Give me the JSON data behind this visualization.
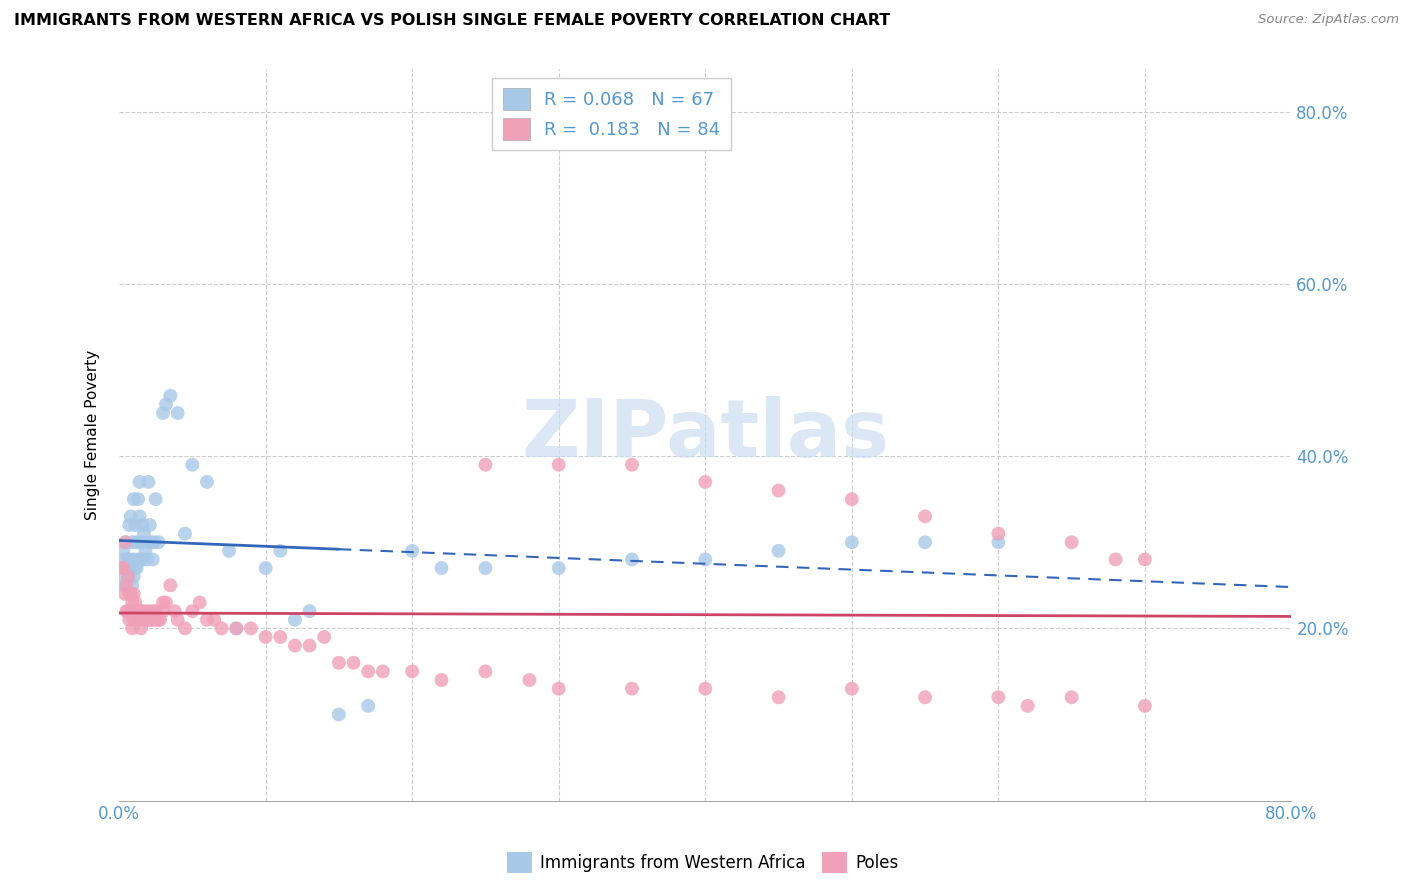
{
  "title": "IMMIGRANTS FROM WESTERN AFRICA VS POLISH SINGLE FEMALE POVERTY CORRELATION CHART",
  "source": "Source: ZipAtlas.com",
  "ylabel": "Single Female Poverty",
  "legend_label1": "Immigrants from Western Africa",
  "legend_label2": "Poles",
  "r1": 0.068,
  "n1": 67,
  "r2": 0.183,
  "n2": 84,
  "blue_color": "#a8c8e8",
  "pink_color": "#f0a0b8",
  "blue_line_color": "#3366bb",
  "pink_line_color": "#cc4466",
  "watermark_color": "#ccddf0",
  "blue_x": [
    0.2,
    0.3,
    0.3,
    0.4,
    0.4,
    0.5,
    0.5,
    0.5,
    0.6,
    0.6,
    0.7,
    0.7,
    0.8,
    0.8,
    0.9,
    0.9,
    1.0,
    1.0,
    1.0,
    1.1,
    1.1,
    1.2,
    1.2,
    1.3,
    1.3,
    1.4,
    1.4,
    1.5,
    1.5,
    1.6,
    1.6,
    1.7,
    1.8,
    1.9,
    2.0,
    2.0,
    2.1,
    2.2,
    2.3,
    2.4,
    2.5,
    2.7,
    3.0,
    3.2,
    3.5,
    4.0,
    4.5,
    5.0,
    6.0,
    7.5,
    8.0,
    10.0,
    11.0,
    12.0,
    13.0,
    15.0,
    17.0,
    20.0,
    22.0,
    25.0,
    30.0,
    35.0,
    40.0,
    45.0,
    50.0,
    55.0,
    60.0
  ],
  "blue_y": [
    27.0,
    25.0,
    29.0,
    26.0,
    28.0,
    30.0,
    25.0,
    27.0,
    28.0,
    26.0,
    32.0,
    28.0,
    33.0,
    27.0,
    30.0,
    25.0,
    35.0,
    28.0,
    26.0,
    32.0,
    27.0,
    30.0,
    27.0,
    35.0,
    28.0,
    37.0,
    33.0,
    30.0,
    28.0,
    32.0,
    28.0,
    31.0,
    29.0,
    28.0,
    37.0,
    30.0,
    32.0,
    30.0,
    28.0,
    30.0,
    35.0,
    30.0,
    45.0,
    46.0,
    47.0,
    45.0,
    31.0,
    39.0,
    37.0,
    29.0,
    20.0,
    27.0,
    29.0,
    21.0,
    22.0,
    10.0,
    11.0,
    29.0,
    27.0,
    27.0,
    27.0,
    28.0,
    28.0,
    29.0,
    30.0,
    30.0,
    30.0
  ],
  "pink_x": [
    0.2,
    0.3,
    0.4,
    0.4,
    0.5,
    0.5,
    0.6,
    0.6,
    0.7,
    0.7,
    0.8,
    0.8,
    0.9,
    0.9,
    1.0,
    1.0,
    1.1,
    1.2,
    1.3,
    1.4,
    1.5,
    1.5,
    1.6,
    1.7,
    1.8,
    1.9,
    2.0,
    2.0,
    2.1,
    2.2,
    2.3,
    2.4,
    2.5,
    2.6,
    2.7,
    2.8,
    3.0,
    3.0,
    3.2,
    3.5,
    3.8,
    4.0,
    4.5,
    5.0,
    5.5,
    6.0,
    6.5,
    7.0,
    8.0,
    9.0,
    10.0,
    11.0,
    12.0,
    13.0,
    14.0,
    15.0,
    16.0,
    17.0,
    18.0,
    20.0,
    22.0,
    25.0,
    28.0,
    30.0,
    35.0,
    40.0,
    45.0,
    50.0,
    55.0,
    60.0,
    62.0,
    65.0,
    70.0,
    25.0,
    30.0,
    35.0,
    40.0,
    45.0,
    50.0,
    55.0,
    60.0,
    65.0,
    68.0,
    70.0
  ],
  "pink_y": [
    27.0,
    27.0,
    30.0,
    24.0,
    25.0,
    22.0,
    26.0,
    22.0,
    24.0,
    21.0,
    24.0,
    22.0,
    23.0,
    20.0,
    24.0,
    21.0,
    23.0,
    22.0,
    21.0,
    22.0,
    22.0,
    20.0,
    21.0,
    22.0,
    21.0,
    21.0,
    22.0,
    21.0,
    21.0,
    21.0,
    22.0,
    21.0,
    22.0,
    21.0,
    21.0,
    21.0,
    23.0,
    22.0,
    23.0,
    25.0,
    22.0,
    21.0,
    20.0,
    22.0,
    23.0,
    21.0,
    21.0,
    20.0,
    20.0,
    20.0,
    19.0,
    19.0,
    18.0,
    18.0,
    19.0,
    16.0,
    16.0,
    15.0,
    15.0,
    15.0,
    14.0,
    15.0,
    14.0,
    13.0,
    13.0,
    13.0,
    12.0,
    13.0,
    12.0,
    12.0,
    11.0,
    12.0,
    11.0,
    39.0,
    39.0,
    39.0,
    37.0,
    36.0,
    35.0,
    33.0,
    31.0,
    30.0,
    28.0,
    28.0
  ],
  "xmin": 0.0,
  "xmax": 80.0,
  "ymin": 0.0,
  "ymax": 85.0,
  "ytick_vals": [
    0,
    20,
    40,
    60,
    80
  ],
  "ytick_labels": [
    "",
    "20.0%",
    "40.0%",
    "60.0%",
    "80.0%"
  ],
  "xtick_vals": [
    0,
    10,
    20,
    30,
    40,
    50,
    60,
    70,
    80
  ],
  "xtick_labels": [
    "0.0%",
    "",
    "",
    "",
    "",
    "",
    "",
    "",
    "80.0%"
  ]
}
